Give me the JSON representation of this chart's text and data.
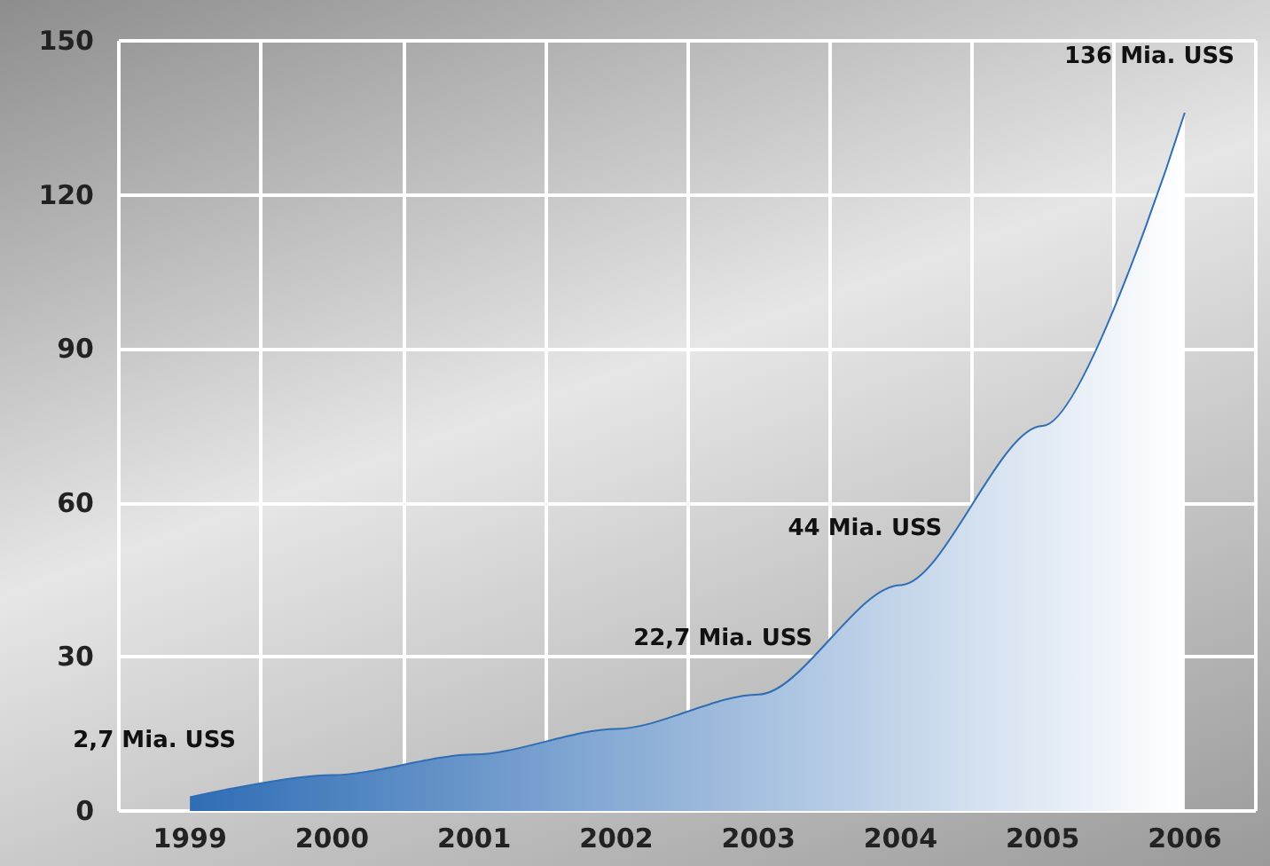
{
  "chart_data": {
    "type": "area",
    "categories": [
      "1999",
      "2000",
      "2001",
      "2002",
      "2003",
      "2004",
      "2005",
      "2006"
    ],
    "series": [
      {
        "color": "#2f6db5",
        "values": [
          2.7,
          7,
          11,
          16,
          22.7,
          44,
          75,
          136
        ],
        "value_labels": [
          "2,7 Mia. USS",
          null,
          null,
          null,
          "22,7 Mia. USS",
          "44 Mia. USS",
          null,
          "136 Mia. USS"
        ]
      }
    ],
    "ylim": [
      0,
      150
    ],
    "yticks": [
      0,
      30,
      60,
      90,
      120,
      150
    ],
    "grid": true,
    "marker": "none"
  }
}
